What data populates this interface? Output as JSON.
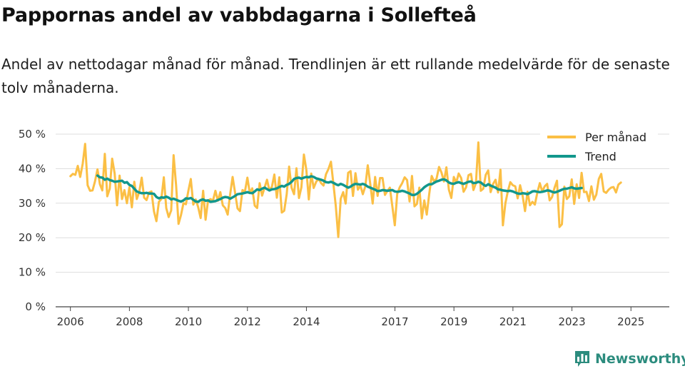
{
  "title": "Pappornas andel av vabbdagarna i Sollefteå",
  "subtitle": "Andel av nettodagar månad för månad. Trendlinjen är ett rullande medelvärde för de senaste tolv månaderna.",
  "brand": {
    "name": "Newsworthy",
    "color": "#2c8c7e"
  },
  "chart_data": {
    "type": "line",
    "ylim": [
      0,
      50
    ],
    "yticks": [
      0,
      10,
      20,
      30,
      40,
      50
    ],
    "ytick_labels": [
      "0 %",
      "10 %",
      "20 %",
      "30 %",
      "40 %",
      "50 %"
    ],
    "xlim": [
      2005.5,
      2026.3
    ],
    "xticks": [
      2006,
      2008,
      2010,
      2012,
      2014,
      2017,
      2019,
      2021,
      2023,
      2025
    ],
    "xtick_labels": [
      "2006",
      "2008",
      "2010",
      "2012",
      "2014",
      "2017",
      "2019",
      "2021",
      "2023",
      "2025"
    ],
    "grid": true,
    "legend_position": "top-right",
    "series": [
      {
        "name": "Per månad",
        "color": "#fbbf45",
        "x_start": 2006.0,
        "x_step": 0.0833,
        "values": [
          37.8,
          38.5,
          38.2,
          40.8,
          37.6,
          41.4,
          47.2,
          35.2,
          33.6,
          33.7,
          36.3,
          39.8,
          35.5,
          33.7,
          44.3,
          32.0,
          34.2,
          42.9,
          38.6,
          29.4,
          38.0,
          31.2,
          33.8,
          30.0,
          34.6,
          28.8,
          36.2,
          31.2,
          33.2,
          37.4,
          31.6,
          30.9,
          33.1,
          33.4,
          27.6,
          24.8,
          30.4,
          31.2,
          37.5,
          28.6,
          26.0,
          27.9,
          43.9,
          35.2,
          24.0,
          26.6,
          30.0,
          29.7,
          33.6,
          37.0,
          29.6,
          31.1,
          28.8,
          25.7,
          33.6,
          25.2,
          30.7,
          31.2,
          30.7,
          33.6,
          30.7,
          33.2,
          29.4,
          28.6,
          26.7,
          32.5,
          37.6,
          33.1,
          28.5,
          27.7,
          33.8,
          33.3,
          37.4,
          32.9,
          34.3,
          29.3,
          28.6,
          35.8,
          32.2,
          34.5,
          36.8,
          33.7,
          34.8,
          38.3,
          31.6,
          37.5,
          27.3,
          27.8,
          32.6,
          40.6,
          34.5,
          32.6,
          40.1,
          31.5,
          34.6,
          44.1,
          39.7,
          31.1,
          38.6,
          34.4,
          36.2,
          37.1,
          35.8,
          35.1,
          38.4,
          39.9,
          42.0,
          35.7,
          29.2,
          20.2,
          31.3,
          33.2,
          29.9,
          38.8,
          39.3,
          32.1,
          38.7,
          33.9,
          35.1,
          32.6,
          34.9,
          41.0,
          35.6,
          29.9,
          37.6,
          32.1,
          37.3,
          37.3,
          32.4,
          33.6,
          34.5,
          29.0,
          23.6,
          32.7,
          34.6,
          35.8,
          37.5,
          36.7,
          30.5,
          37.9,
          29.1,
          29.8,
          34.5,
          25.6,
          30.8,
          26.7,
          32.6,
          37.9,
          36.3,
          37.1,
          40.5,
          38.9,
          36.3,
          40.4,
          33.9,
          31.5,
          37.6,
          35.9,
          38.6,
          37.3,
          33.3,
          34.6,
          38.1,
          38.5,
          33.8,
          35.8,
          47.6,
          33.6,
          34.2,
          38.2,
          39.5,
          33.2,
          35.6,
          36.8,
          33.1,
          39.7,
          23.6,
          30.0,
          33.4,
          36.1,
          35.2,
          34.9,
          31.4,
          35.2,
          32.2,
          27.7,
          33.3,
          29.4,
          30.4,
          29.6,
          33.1,
          35.8,
          33.4,
          34.9,
          35.6,
          30.8,
          31.8,
          34.5,
          36.5,
          23.1,
          23.9,
          34.8,
          31.2,
          32.0,
          36.9,
          29.8,
          35.5,
          31.5,
          38.8,
          33.2,
          33.3,
          30.6,
          34.9,
          31.0,
          32.5,
          37.0,
          38.5,
          33.4,
          33.0,
          33.9,
          34.5,
          34.7,
          33.1,
          35.4,
          36.0
        ]
      },
      {
        "name": "Trend",
        "color": "#12978c",
        "x_start": 2006.9167,
        "x_step": 0.0833,
        "values": [
          38.0,
          37.5,
          37.4,
          36.8,
          37.1,
          36.7,
          36.5,
          36.2,
          36.3,
          36.4,
          36.5,
          35.9,
          36.1,
          35.3,
          35.0,
          34.2,
          33.4,
          33.1,
          32.9,
          32.9,
          33.0,
          32.8,
          32.8,
          32.7,
          31.8,
          31.4,
          31.7,
          31.6,
          31.9,
          31.6,
          31.1,
          31.3,
          31.0,
          30.7,
          30.5,
          30.8,
          31.4,
          31.3,
          31.5,
          31.0,
          30.5,
          30.4,
          30.9,
          31.1,
          30.7,
          30.8,
          30.4,
          30.5,
          30.6,
          30.9,
          31.2,
          31.6,
          31.8,
          31.7,
          31.3,
          31.7,
          32.1,
          32.6,
          32.7,
          32.8,
          33.0,
          33.2,
          33.0,
          32.9,
          33.4,
          34.0,
          33.8,
          34.2,
          34.5,
          34.1,
          33.7,
          34.0,
          34.1,
          34.3,
          34.7,
          35.0,
          34.8,
          35.3,
          35.6,
          36.2,
          37.0,
          37.3,
          37.4,
          37.1,
          37.4,
          37.6,
          37.5,
          37.8,
          37.6,
          37.2,
          37.0,
          36.8,
          36.5,
          36.1,
          36.0,
          36.2,
          35.9,
          35.5,
          35.2,
          35.6,
          35.3,
          34.9,
          34.5,
          34.8,
          35.3,
          35.6,
          35.5,
          35.4,
          35.6,
          35.3,
          34.8,
          34.5,
          34.2,
          33.9,
          33.5,
          33.6,
          33.8,
          33.7,
          33.6,
          33.7,
          33.8,
          33.4,
          33.3,
          33.4,
          33.6,
          33.4,
          33.1,
          32.8,
          32.4,
          32.4,
          32.7,
          33.3,
          33.9,
          34.6,
          35.1,
          35.5,
          35.5,
          35.9,
          36.3,
          36.5,
          36.8,
          36.9,
          36.6,
          36.0,
          35.7,
          35.6,
          35.9,
          36.1,
          35.8,
          35.6,
          35.9,
          36.2,
          36.3,
          35.8,
          35.9,
          36.2,
          36.0,
          35.4,
          35.0,
          35.5,
          35.1,
          34.8,
          34.5,
          34.0,
          33.9,
          33.7,
          33.6,
          33.5,
          33.6,
          33.4,
          33.1,
          32.8,
          32.7,
          32.9,
          32.8,
          32.6,
          33.0,
          33.4,
          33.5,
          33.3,
          33.2,
          33.3,
          33.5,
          33.7,
          33.6,
          33.3,
          33.1,
          33.3,
          33.6,
          33.9,
          34.2,
          34.2,
          34.4,
          34.6,
          34.3,
          34.2,
          34.3,
          34.4
        ]
      }
    ]
  }
}
